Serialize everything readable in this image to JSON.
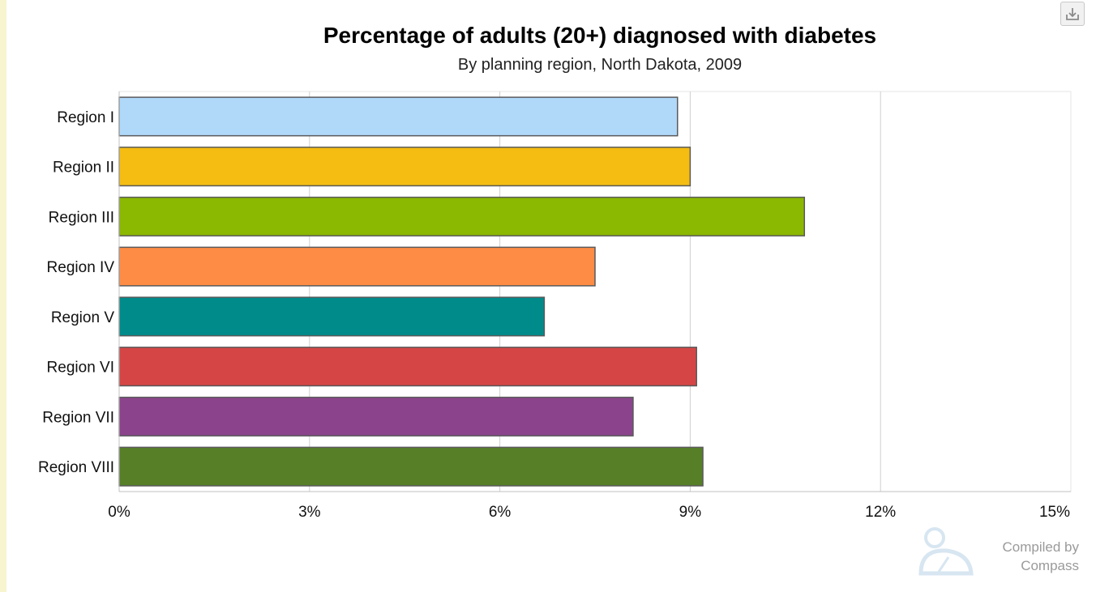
{
  "chart_data": {
    "type": "bar",
    "orientation": "horizontal",
    "title": "Percentage of adults (20+) diagnosed with diabetes",
    "subtitle": "By planning region, North Dakota, 2009",
    "categories": [
      "Region I",
      "Region II",
      "Region III",
      "Region IV",
      "Region V",
      "Region VI",
      "Region VII",
      "Region VIII"
    ],
    "values": [
      8.8,
      9.0,
      10.8,
      7.5,
      6.7,
      9.1,
      8.1,
      9.2
    ],
    "colors": [
      "#b0d8f8",
      "#f5bd12",
      "#8bb800",
      "#ff8c45",
      "#008b8b",
      "#d64545",
      "#8b448b",
      "#567f28"
    ],
    "xlim": [
      0,
      15
    ],
    "ticks": [
      0,
      3,
      6,
      9,
      12,
      15
    ],
    "tick_labels": [
      "0%",
      "3%",
      "6%",
      "9%",
      "12%",
      "15%"
    ],
    "grid": true
  },
  "credit": {
    "line1": "Compiled by",
    "line2": "Compass"
  },
  "toolbar": {
    "export_icon": "download-icon"
  }
}
